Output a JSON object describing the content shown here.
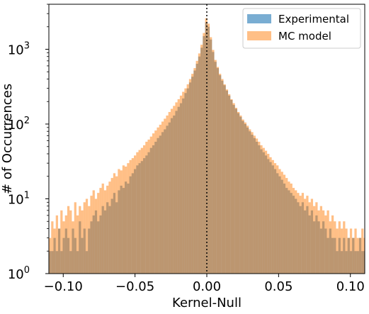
{
  "chart_data": {
    "type": "histogram",
    "xlabel": "Kernel-Null",
    "ylabel": "# of Occurrences",
    "xlim": [
      -0.11,
      0.11
    ],
    "ylim": [
      1,
      4000
    ],
    "yscale": "log",
    "x_ticks": [
      -0.1,
      -0.05,
      0.0,
      0.05,
      0.1
    ],
    "x_tick_labels": [
      "−0.10",
      "−0.05",
      "0.00",
      "0.05",
      "0.10"
    ],
    "y_ticks": [
      1,
      10,
      100,
      1000
    ],
    "y_tick_labels": [
      "10",
      "10",
      "10",
      "10"
    ],
    "y_tick_exponents": [
      "0",
      "1",
      "2",
      "3"
    ],
    "reference_line": {
      "x": 0.0,
      "style": "dotted",
      "color": "#000000"
    },
    "bin_width": 0.0016,
    "legend_position": "top-right",
    "series": [
      {
        "name": "Experimental",
        "color": "#1f77b4",
        "opacity": 0.6,
        "bin_starts": [
          -0.11,
          -0.1084,
          -0.1068,
          -0.1052,
          -0.1036,
          -0.102,
          -0.1004,
          -0.0988,
          -0.0972,
          -0.0956,
          -0.094,
          -0.0924,
          -0.0908,
          -0.0892,
          -0.0876,
          -0.086,
          -0.0844,
          -0.0828,
          -0.0812,
          -0.0796,
          -0.078,
          -0.0764,
          -0.0748,
          -0.0732,
          -0.0716,
          -0.07,
          -0.0684,
          -0.0668,
          -0.0652,
          -0.0636,
          -0.062,
          -0.0604,
          -0.0588,
          -0.0572,
          -0.0556,
          -0.054,
          -0.0524,
          -0.0508,
          -0.0492,
          -0.0476,
          -0.046,
          -0.0444,
          -0.0428,
          -0.0412,
          -0.0396,
          -0.038,
          -0.0364,
          -0.0348,
          -0.0332,
          -0.0316,
          -0.03,
          -0.0284,
          -0.0268,
          -0.0252,
          -0.0236,
          -0.022,
          -0.0204,
          -0.0188,
          -0.0172,
          -0.0156,
          -0.014,
          -0.0124,
          -0.0108,
          -0.0092,
          -0.0076,
          -0.006,
          -0.0044,
          -0.0028,
          -0.0012,
          0.0004,
          0.002,
          0.0036,
          0.0052,
          0.0068,
          0.0084,
          0.01,
          0.0116,
          0.0132,
          0.0148,
          0.0164,
          0.018,
          0.0196,
          0.0212,
          0.0228,
          0.0244,
          0.026,
          0.0276,
          0.0292,
          0.0308,
          0.0324,
          0.034,
          0.0356,
          0.0372,
          0.0388,
          0.0404,
          0.042,
          0.0436,
          0.0452,
          0.0468,
          0.0484,
          0.05,
          0.0516,
          0.0532,
          0.0548,
          0.0564,
          0.058,
          0.0596,
          0.0612,
          0.0628,
          0.0644,
          0.066,
          0.0676,
          0.0692,
          0.0708,
          0.0724,
          0.074,
          0.0756,
          0.0772,
          0.0788,
          0.0804,
          0.082,
          0.0836,
          0.0852,
          0.0868,
          0.0884,
          0.09,
          0.0916,
          0.0932,
          0.0948,
          0.0964,
          0.098,
          0.0996,
          0.1012,
          0.1028,
          0.1044,
          0.106,
          0.1076,
          0.1092
        ],
        "values": [
          2,
          2,
          3,
          2,
          4,
          2,
          3,
          4,
          3,
          2,
          4,
          3,
          2,
          5,
          3,
          4,
          2,
          4,
          5,
          6,
          7,
          5,
          6,
          8,
          7,
          9,
          8,
          10,
          12,
          9,
          13,
          15,
          14,
          17,
          16,
          20,
          22,
          25,
          28,
          30,
          32,
          35,
          38,
          42,
          48,
          52,
          58,
          65,
          70,
          78,
          85,
          95,
          105,
          120,
          130,
          150,
          170,
          190,
          220,
          260,
          300,
          360,
          430,
          520,
          640,
          800,
          1050,
          1500,
          2300,
          2000,
          1350,
          920,
          680,
          560,
          450,
          380,
          330,
          280,
          240,
          210,
          180,
          160,
          140,
          125,
          110,
          100,
          90,
          80,
          72,
          65,
          58,
          52,
          46,
          42,
          38,
          34,
          31,
          28,
          25,
          22,
          20,
          18,
          16,
          14,
          13,
          12,
          11,
          10,
          9,
          8,
          9,
          7,
          8,
          6,
          7,
          5,
          6,
          5,
          4,
          5,
          4,
          3,
          4,
          3,
          3,
          2,
          3,
          2,
          3,
          2,
          3,
          2,
          3,
          2,
          2,
          3,
          2,
          2
        ]
      },
      {
        "name": "MC model",
        "color": "#ff7f0e",
        "opacity": 0.5,
        "bin_starts": [
          -0.11,
          -0.1084,
          -0.1068,
          -0.1052,
          -0.1036,
          -0.102,
          -0.1004,
          -0.0988,
          -0.0972,
          -0.0956,
          -0.094,
          -0.0924,
          -0.0908,
          -0.0892,
          -0.0876,
          -0.086,
          -0.0844,
          -0.0828,
          -0.0812,
          -0.0796,
          -0.078,
          -0.0764,
          -0.0748,
          -0.0732,
          -0.0716,
          -0.07,
          -0.0684,
          -0.0668,
          -0.0652,
          -0.0636,
          -0.062,
          -0.0604,
          -0.0588,
          -0.0572,
          -0.0556,
          -0.054,
          -0.0524,
          -0.0508,
          -0.0492,
          -0.0476,
          -0.046,
          -0.0444,
          -0.0428,
          -0.0412,
          -0.0396,
          -0.038,
          -0.0364,
          -0.0348,
          -0.0332,
          -0.0316,
          -0.03,
          -0.0284,
          -0.0268,
          -0.0252,
          -0.0236,
          -0.022,
          -0.0204,
          -0.0188,
          -0.0172,
          -0.0156,
          -0.014,
          -0.0124,
          -0.0108,
          -0.0092,
          -0.0076,
          -0.006,
          -0.0044,
          -0.0028,
          -0.0012,
          0.0004,
          0.002,
          0.0036,
          0.0052,
          0.0068,
          0.0084,
          0.01,
          0.0116,
          0.0132,
          0.0148,
          0.0164,
          0.018,
          0.0196,
          0.0212,
          0.0228,
          0.0244,
          0.026,
          0.0276,
          0.0292,
          0.0308,
          0.0324,
          0.034,
          0.0356,
          0.0372,
          0.0388,
          0.0404,
          0.042,
          0.0436,
          0.0452,
          0.0468,
          0.0484,
          0.05,
          0.0516,
          0.0532,
          0.0548,
          0.0564,
          0.058,
          0.0596,
          0.0612,
          0.0628,
          0.0644,
          0.066,
          0.0676,
          0.0692,
          0.0708,
          0.0724,
          0.074,
          0.0756,
          0.0772,
          0.0788,
          0.0804,
          0.082,
          0.0836,
          0.0852,
          0.0868,
          0.0884,
          0.09,
          0.0916,
          0.0932,
          0.0948,
          0.0964,
          0.098,
          0.0996,
          0.1012,
          0.1028,
          0.1044,
          0.106,
          0.1076,
          0.1092
        ],
        "values": [
          3,
          5,
          4,
          6,
          4,
          7,
          5,
          6,
          8,
          7,
          5,
          9,
          6,
          8,
          7,
          9,
          10,
          8,
          11,
          13,
          10,
          12,
          14,
          16,
          13,
          15,
          17,
          19,
          22,
          20,
          25,
          24,
          28,
          27,
          30,
          33,
          35,
          38,
          42,
          45,
          48,
          52,
          58,
          62,
          68,
          75,
          82,
          90,
          98,
          108,
          118,
          130,
          145,
          160,
          175,
          195,
          215,
          240,
          270,
          300,
          340,
          400,
          470,
          560,
          700,
          880,
          1150,
          1650,
          2600,
          2200,
          1450,
          980,
          720,
          580,
          470,
          400,
          340,
          290,
          250,
          215,
          190,
          165,
          145,
          130,
          115,
          105,
          95,
          85,
          78,
          70,
          64,
          58,
          52,
          48,
          44,
          40,
          36,
          33,
          30,
          28,
          25,
          23,
          21,
          19,
          17,
          16,
          14,
          13,
          12,
          11,
          12,
          10,
          11,
          9,
          10,
          8,
          9,
          7,
          8,
          7,
          6,
          7,
          5,
          6,
          5,
          4,
          5,
          4,
          5,
          4,
          3,
          4,
          3,
          4,
          3,
          3,
          4,
          3
        ]
      }
    ]
  }
}
